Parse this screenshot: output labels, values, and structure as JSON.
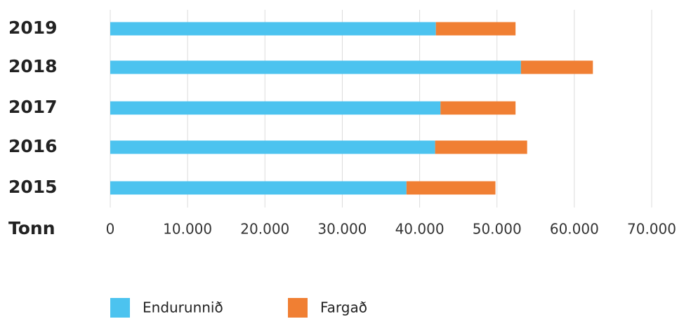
{
  "chart_data": {
    "type": "stacked-bar-horizontal",
    "categories": [
      "2019",
      "2018",
      "2017",
      "2016",
      "2015"
    ],
    "series": [
      {
        "name": "Endurunnið",
        "color": "#4cc3ef",
        "values": [
          42100,
          53100,
          42700,
          42000,
          38300
        ]
      },
      {
        "name": "Fargað",
        "color": "#f07f33",
        "values": [
          10300,
          9300,
          9700,
          11900,
          11500
        ]
      }
    ],
    "xlabel": "Tonn",
    "xlim": [
      0,
      70000
    ],
    "xticks": [
      0,
      {
        "value": 10000,
        "label": "10.000"
      },
      {
        "value": 20000,
        "label": "20.000"
      },
      {
        "value": 30000,
        "label": "30.000"
      },
      {
        "value": 40000,
        "label": "40.000"
      },
      {
        "value": 50000,
        "label": "50.000"
      },
      {
        "value": 60000,
        "label": "60.000"
      },
      {
        "value": 70000,
        "label": "70.000"
      }
    ],
    "grid": true,
    "legend": "bottom"
  }
}
